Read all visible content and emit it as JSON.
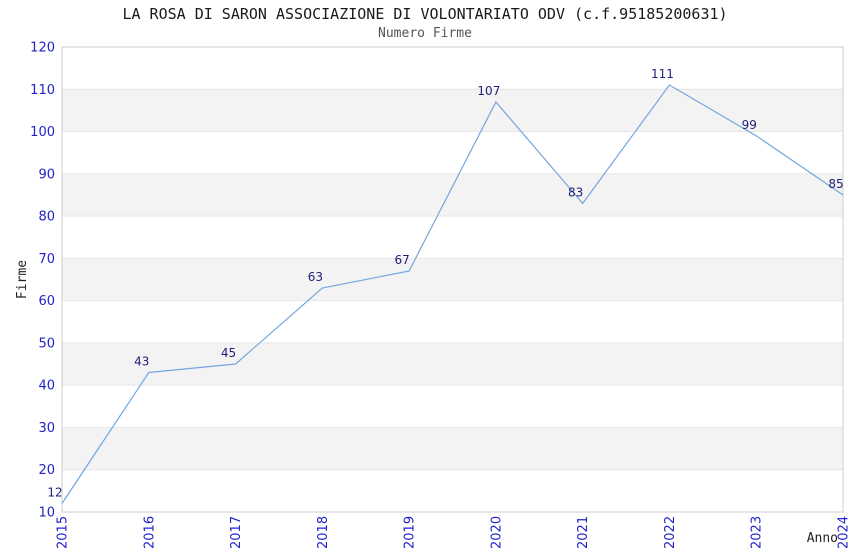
{
  "header": {
    "title": "LA ROSA DI SARON ASSOCIAZIONE DI VOLONTARIATO ODV (c.f.95185200631)",
    "subtitle": "Numero Firme"
  },
  "chart_data": {
    "type": "line",
    "title": "LA ROSA DI SARON ASSOCIAZIONE DI VOLONTARIATO ODV (c.f.95185200631)",
    "subtitle": "Numero Firme",
    "x": [
      2015,
      2016,
      2017,
      2018,
      2019,
      2020,
      2021,
      2022,
      2023,
      2024
    ],
    "values": [
      12,
      43,
      45,
      63,
      67,
      107,
      83,
      111,
      99,
      85
    ],
    "series_name": "Numero Firme",
    "xlabel": "Anno",
    "ylabel": "Firme",
    "ylim": [
      10,
      120
    ],
    "ytick_step": 10,
    "yticks": [
      10,
      20,
      30,
      40,
      50,
      60,
      70,
      80,
      90,
      100,
      110,
      120
    ],
    "xticks": [
      "2015",
      "2016",
      "2017",
      "2018",
      "2019",
      "2020",
      "2021",
      "2022",
      "2023",
      "2024"
    ],
    "data_labels": [
      "12",
      "43",
      "45",
      "63",
      "67",
      "107",
      "83",
      "111",
      "99",
      "85"
    ],
    "grid": "horizontal-alternating-bands",
    "legend_position": "none",
    "colors": {
      "line": "#74a7dd",
      "tick_label": "#2222cc",
      "data_label": "#1f1f78",
      "band": "#f3f3f3",
      "grid_line": "#e6e6e6",
      "plot_border": "#cccccc",
      "title": "#1a1a1a",
      "subtitle": "#555555",
      "axis_title": "#222222",
      "background": "#ffffff"
    }
  }
}
